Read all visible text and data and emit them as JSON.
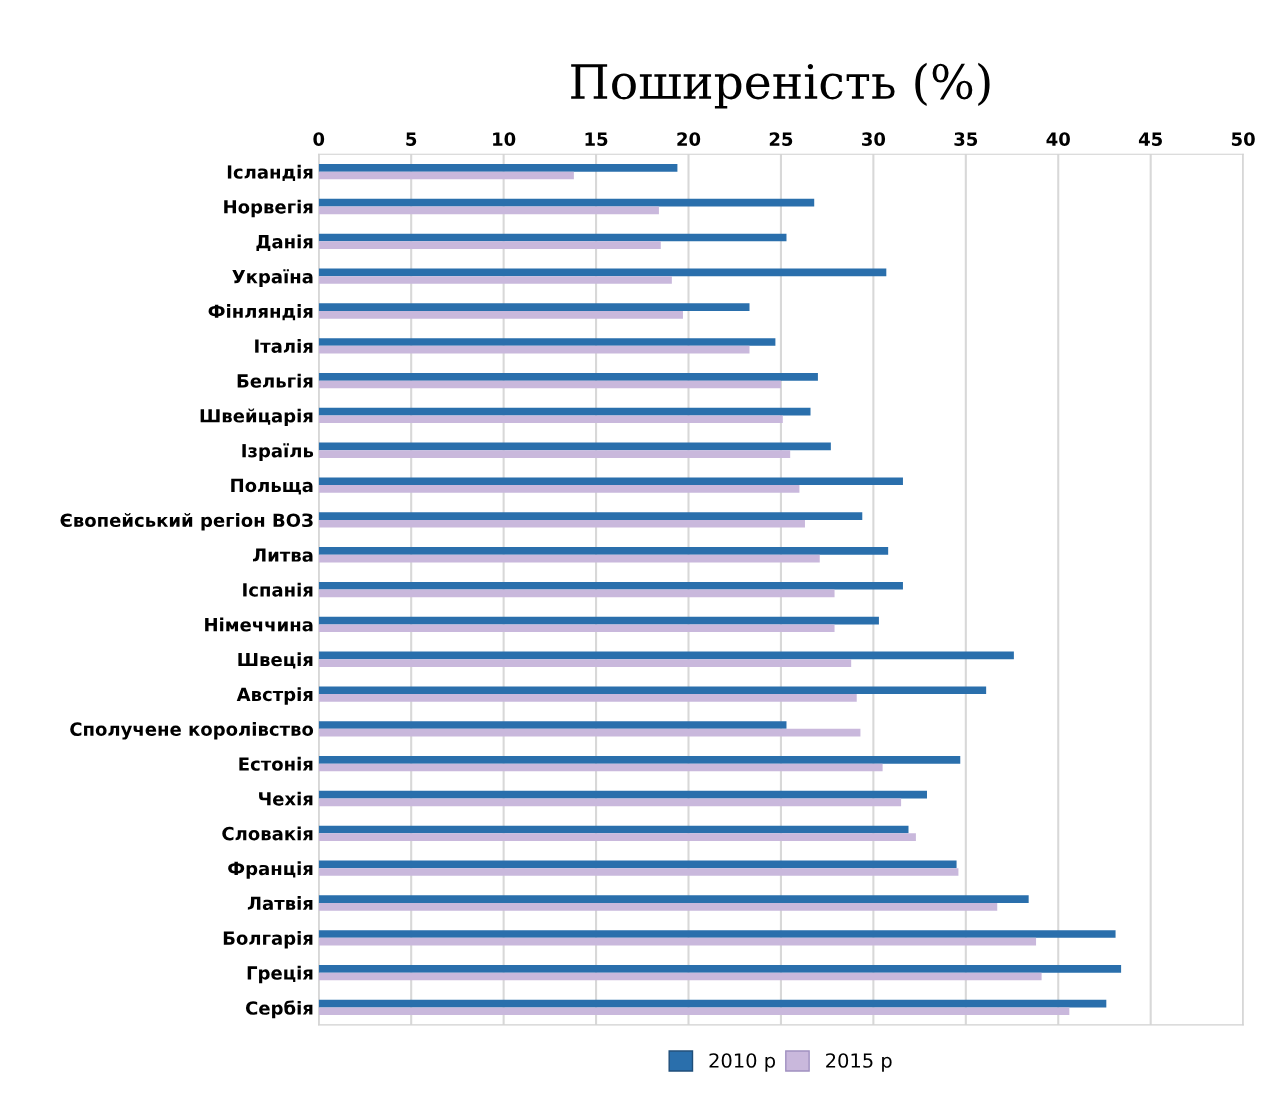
{
  "chart_data": {
    "type": "bar",
    "orientation": "horizontal",
    "title": "Поширеність (%)",
    "categories": [
      "Ісландія",
      "Норвегія",
      "Данія",
      "Україна",
      "Фінляндія",
      "Італія",
      "Бельгія",
      "Швейцарія",
      "Ізраїль",
      "Польща",
      "Євопейський регіон ВОЗ",
      "Литва",
      "Іспанія",
      "Німеччина",
      "Швеція",
      "Австрія",
      "Сполучене королівство",
      "Естонія",
      "Чехія",
      "Словакія",
      "Франція",
      "Латвія",
      "Болгарія",
      "Греція",
      "Сербія"
    ],
    "series": [
      {
        "name": "2010 р",
        "color": "#2a6fac",
        "values": [
          19.4,
          26.8,
          25.3,
          30.7,
          23.3,
          24.7,
          27.0,
          26.6,
          27.7,
          31.6,
          29.4,
          30.8,
          31.6,
          30.3,
          37.6,
          36.1,
          25.3,
          34.7,
          32.9,
          31.9,
          34.5,
          38.4,
          43.1,
          43.4,
          42.6
        ]
      },
      {
        "name": "2015 р",
        "color": "#c9b8dc",
        "values": [
          13.8,
          18.4,
          18.5,
          19.1,
          19.7,
          23.3,
          25.0,
          25.1,
          25.5,
          26.0,
          26.3,
          27.1,
          27.9,
          27.9,
          28.8,
          29.1,
          29.3,
          30.5,
          31.5,
          32.3,
          34.6,
          36.7,
          38.8,
          39.1,
          40.6
        ]
      }
    ],
    "xlim": [
      0,
      50
    ],
    "xticks": [
      0,
      5,
      10,
      15,
      20,
      25,
      30,
      35,
      40,
      45,
      50
    ],
    "grid": "x",
    "legend": "bottom"
  }
}
